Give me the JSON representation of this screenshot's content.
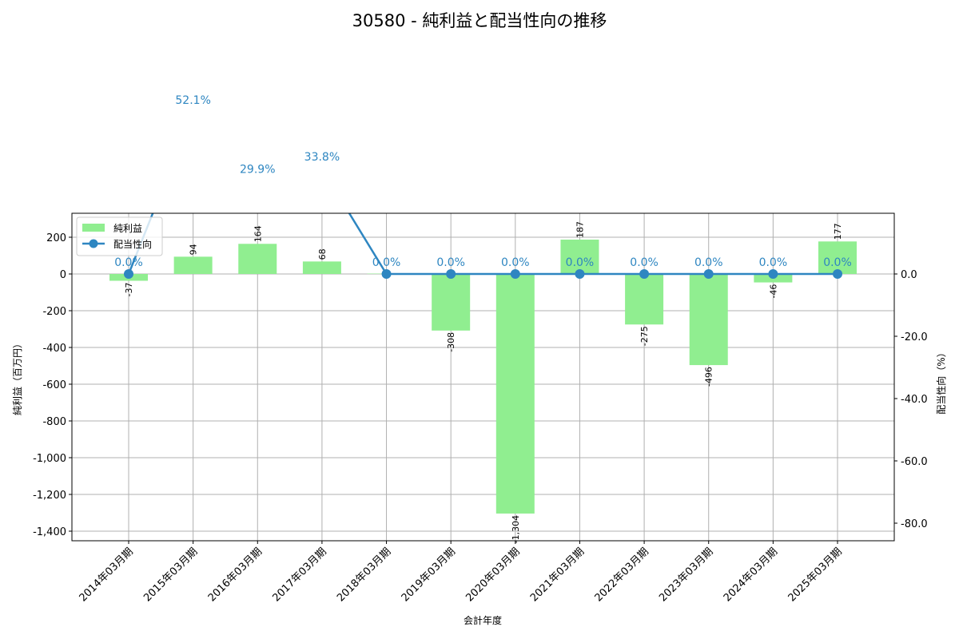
{
  "chart_data": {
    "type": "bar+line",
    "title": "30580 - 純利益と配当性向の推移",
    "xlabel": "会計年度",
    "ylabel": "純利益（百万円）",
    "y2label": "配当性向（%）",
    "categories": [
      "2014年03月期",
      "2015年03月期",
      "2016年03月期",
      "2017年03月期",
      "2018年03月期",
      "2019年03月期",
      "2020年03月期",
      "2021年03月期",
      "2022年03月期",
      "2023年03月期",
      "2024年03月期",
      "2025年03月期"
    ],
    "series": [
      {
        "name": "純利益",
        "type": "bar",
        "axis": "left",
        "color": "#90ee90",
        "values": [
          -37,
          94,
          164,
          68,
          2,
          -308,
          -1304,
          187,
          -275,
          -496,
          -46,
          177
        ],
        "labels": [
          "-37",
          "94",
          "164",
          "68",
          "",
          "-308",
          "-1,304",
          "187",
          "-275",
          "-496",
          "-46",
          "177"
        ]
      },
      {
        "name": "配当性向",
        "type": "line",
        "axis": "right",
        "color": "#2e86c1",
        "values": [
          0.0,
          52.1,
          29.9,
          33.8,
          0.0,
          0.0,
          0.0,
          0.0,
          0.0,
          0.0,
          0.0,
          0.0
        ],
        "labels": [
          "0.0%",
          "52.1%",
          "29.9%",
          "33.8%",
          "0.0%",
          "0.0%",
          "0.0%",
          "0.0%",
          "0.0%",
          "0.0%",
          "0.0%",
          "0.0%"
        ]
      }
    ],
    "ylim": [
      -1450,
      330
    ],
    "y2lim": [
      -85.6,
      19.5
    ],
    "yticks": [
      200,
      0,
      -200,
      -400,
      -600,
      -800,
      -1000,
      -1200,
      -1400
    ],
    "ytick_labels": [
      "200",
      "0",
      "-200",
      "-400",
      "-600",
      "-800",
      "-1,000",
      "-1,200",
      "-1,400"
    ],
    "y2ticks": [
      0,
      -20,
      -40,
      -60,
      -80
    ],
    "y2tick_labels": [
      "0.0",
      "-20.0",
      "-40.0",
      "-60.0",
      "-80.0"
    ],
    "grid": true,
    "legend_position": "upper left"
  },
  "legend": {
    "bar_label": "純利益",
    "line_label": "配当性向"
  }
}
